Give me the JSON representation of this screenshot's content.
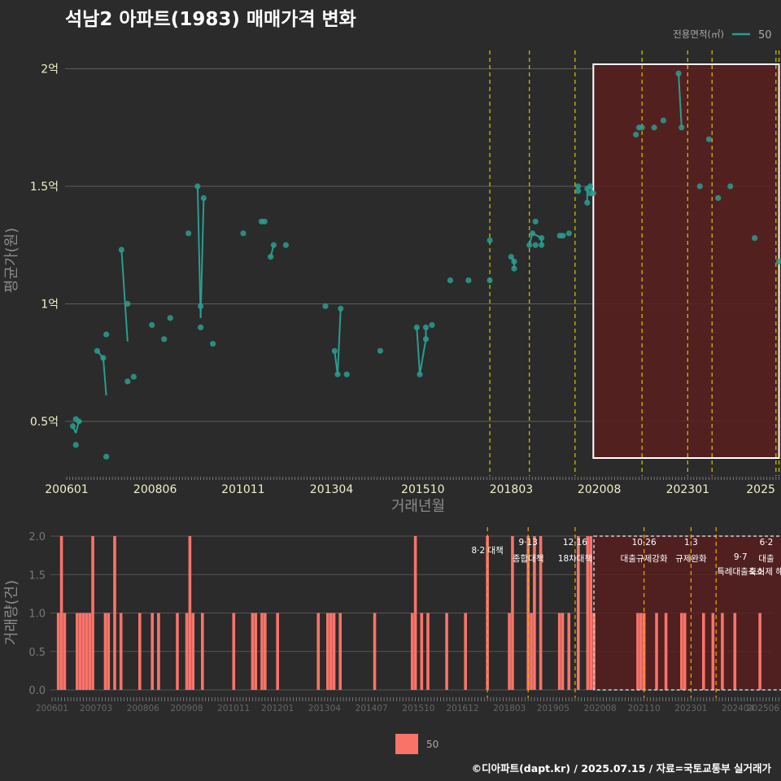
{
  "title": "석남2 아파트(1983) 매매가격 변화",
  "footer": "©디아파트(dapt.kr) / 2025.07.15 / 자료=국토교통부 실거래가",
  "colors": {
    "background": "#2b2b2b",
    "series": "#2a9d8f",
    "volume_bar": "#fa7369",
    "highlight_fill": "#5a1e1e",
    "policy_line": "#d4c700",
    "policy_line_lower": "#f2a900"
  },
  "chart_data": [
    {
      "type": "scatter",
      "title": "석남2 아파트(1983) 매매가격 변화",
      "xlabel": "거래년월",
      "ylabel": "평균가(원)",
      "x_ticks": [
        "200601",
        "200806",
        "201011",
        "201304",
        "201510",
        "201803",
        "202008",
        "202301",
        "2025"
      ],
      "y_ticks": [
        "0.5억",
        "1억",
        "1.5억",
        "2억"
      ],
      "y_tick_values": [
        0.5,
        1.0,
        1.5,
        2.0
      ],
      "ylim": [
        0.25,
        2.1
      ],
      "grid": true,
      "legend": {
        "title": "전용면적(㎡)",
        "placement": "top-right"
      },
      "highlight_range": [
        "2020-06",
        "2025-07"
      ],
      "policy_dates": [
        "2017-08",
        "2018-09",
        "2019-12",
        "2021-10",
        "2023-01",
        "2023-09",
        "2025-06",
        "2025-07"
      ],
      "series": [
        {
          "name": "50",
          "points": [
            [
              "2006-03",
              0.48
            ],
            [
              "2006-04",
              0.51
            ],
            [
              "2006-05",
              0.5
            ],
            [
              "2006-04",
              0.4
            ],
            [
              "2006-11",
              0.8
            ],
            [
              "2007-01",
              0.77
            ],
            [
              "2007-02",
              0.87
            ],
            [
              "2007-02",
              0.35
            ],
            [
              "2007-07",
              1.23
            ],
            [
              "2007-09",
              1.0
            ],
            [
              "2007-09",
              0.67
            ],
            [
              "2007-11",
              0.69
            ],
            [
              "2008-05",
              0.91
            ],
            [
              "2008-09",
              0.85
            ],
            [
              "2008-11",
              0.94
            ],
            [
              "2009-05",
              1.3
            ],
            [
              "2009-08",
              1.5
            ],
            [
              "2009-09",
              0.99
            ],
            [
              "2009-09",
              0.9
            ],
            [
              "2009-10",
              1.45
            ],
            [
              "2010-01",
              0.83
            ],
            [
              "2010-11",
              1.3
            ],
            [
              "2011-05",
              1.35
            ],
            [
              "2011-06",
              1.35
            ],
            [
              "2011-08",
              1.2
            ],
            [
              "2011-09",
              1.25
            ],
            [
              "2012-01",
              1.25
            ],
            [
              "2013-02",
              0.99
            ],
            [
              "2013-05",
              0.8
            ],
            [
              "2013-06",
              0.7
            ],
            [
              "2013-07",
              0.98
            ],
            [
              "2013-09",
              0.7
            ],
            [
              "2014-08",
              0.8
            ],
            [
              "2015-08",
              0.9
            ],
            [
              "2015-09",
              0.7
            ],
            [
              "2015-11",
              0.85
            ],
            [
              "2015-11",
              0.9
            ],
            [
              "2016-01",
              0.91
            ],
            [
              "2016-07",
              1.1
            ],
            [
              "2017-01",
              1.1
            ],
            [
              "2017-08",
              1.27
            ],
            [
              "2017-08",
              1.1
            ],
            [
              "2018-03",
              1.2
            ],
            [
              "2018-04",
              1.18
            ],
            [
              "2018-04",
              1.15
            ],
            [
              "2018-09",
              1.25
            ],
            [
              "2018-10",
              1.3
            ],
            [
              "2018-11",
              1.35
            ],
            [
              "2018-11",
              1.25
            ],
            [
              "2019-01",
              1.28
            ],
            [
              "2019-01",
              1.25
            ],
            [
              "2019-07",
              1.29
            ],
            [
              "2019-08",
              1.29
            ],
            [
              "2019-10",
              1.3
            ],
            [
              "2020-01",
              1.5
            ],
            [
              "2020-01",
              1.48
            ],
            [
              "2020-04",
              1.43
            ],
            [
              "2020-04",
              1.49
            ],
            [
              "2020-05",
              1.5
            ],
            [
              "2020-05",
              1.47
            ],
            [
              "2020-06",
              1.47
            ],
            [
              "2021-08",
              1.72
            ],
            [
              "2021-09",
              1.75
            ],
            [
              "2021-10",
              1.75
            ],
            [
              "2022-02",
              1.75
            ],
            [
              "2022-05",
              1.78
            ],
            [
              "2022-10",
              1.98
            ],
            [
              "2022-11",
              1.75
            ],
            [
              "2023-05",
              1.5
            ],
            [
              "2023-08",
              1.7
            ],
            [
              "2023-11",
              1.45
            ],
            [
              "2024-03",
              1.5
            ],
            [
              "2024-11",
              1.28
            ],
            [
              "2025-07",
              1.18
            ]
          ],
          "line": [
            [
              "2006-03",
              0.48
            ],
            [
              "2006-04",
              0.45
            ],
            [
              "2006-05",
              0.5
            ],
            [
              "2006-06",
              0.5
            ],
            [
              "2006-11",
              0.8
            ],
            [
              "2007-01",
              0.77
            ],
            [
              "2007-02",
              0.61
            ],
            [
              "2007-07",
              1.23
            ],
            [
              "2007-09",
              0.84
            ],
            [
              "2009-08",
              1.5
            ],
            [
              "2009-09",
              0.94
            ],
            [
              "2009-10",
              1.45
            ],
            [
              "2011-08",
              1.2
            ],
            [
              "2011-09",
              1.25
            ],
            [
              "2013-05",
              0.8
            ],
            [
              "2013-06",
              0.7
            ],
            [
              "2013-07",
              0.98
            ],
            [
              "2015-08",
              0.9
            ],
            [
              "2015-09",
              0.7
            ],
            [
              "2015-11",
              0.85
            ],
            [
              "2015-11",
              0.9
            ],
            [
              "2018-03",
              1.2
            ],
            [
              "2018-04",
              1.18
            ],
            [
              "2018-04",
              1.15
            ],
            [
              "2018-09",
              1.25
            ],
            [
              "2018-10",
              1.3
            ],
            [
              "2019-01",
              1.28
            ],
            [
              "2019-01",
              1.25
            ],
            [
              "2020-04",
              1.43
            ],
            [
              "2020-04",
              1.49
            ],
            [
              "2020-05",
              1.5
            ],
            [
              "2020-06",
              1.47
            ],
            [
              "2021-09",
              1.75
            ],
            [
              "2021-10",
              1.75
            ],
            [
              "2022-10",
              1.98
            ],
            [
              "2022-11",
              1.75
            ]
          ]
        }
      ]
    },
    {
      "type": "bar",
      "ylabel": "거래량(건)",
      "x_ticks": [
        "200601",
        "200703",
        "200806",
        "200908",
        "201011",
        "201201",
        "201304",
        "201407",
        "201510",
        "201612",
        "201803",
        "201905",
        "202008",
        "202110",
        "202301",
        "202404",
        "202506"
      ],
      "y_ticks": [
        "0.0",
        "0.5",
        "1.0",
        "1.5",
        "2.0"
      ],
      "y_tick_values": [
        0.0,
        0.5,
        1.0,
        1.5,
        2.0
      ],
      "ylim": [
        0,
        2.1
      ],
      "grid": true,
      "legend": {
        "entries": [
          "50"
        ],
        "placement": "bottom"
      },
      "highlight_range": [
        "2020-06",
        "2025-07"
      ],
      "policy_dates": [
        "2017-08",
        "2018-09",
        "2019-12",
        "2021-10",
        "2023-01",
        "2023-09",
        "2025-06",
        "2025-07"
      ],
      "annotations": [
        {
          "date": "2017-08",
          "lines": [
            "8·2 대책"
          ]
        },
        {
          "date": "2018-09",
          "lines": [
            "9·13",
            "종합대책"
          ]
        },
        {
          "date": "2019-12",
          "lines": [
            "12·16",
            "18차대책"
          ]
        },
        {
          "date": "2021-10",
          "lines": [
            "10·26",
            "대출규제강화"
          ]
        },
        {
          "date": "2023-01",
          "lines": [
            "1·3",
            "규제완화"
          ]
        },
        {
          "date": "2023-09",
          "lines": [
            "9·7",
            "특례대출축소"
          ]
        },
        {
          "date": "2025-06",
          "lines": [
            "6·2",
            "대출"
          ]
        },
        {
          "date": "2025-06",
          "lines": [
            "토허제 해"
          ]
        }
      ],
      "bars": [
        [
          "2006-03",
          1
        ],
        [
          "2006-04",
          2
        ],
        [
          "2006-05",
          1
        ],
        [
          "2006-09",
          1
        ],
        [
          "2006-10",
          1
        ],
        [
          "2006-11",
          1
        ],
        [
          "2006-12",
          1
        ],
        [
          "2007-01",
          1
        ],
        [
          "2007-02",
          2
        ],
        [
          "2007-06",
          1
        ],
        [
          "2007-07",
          1
        ],
        [
          "2007-09",
          2
        ],
        [
          "2007-11",
          1
        ],
        [
          "2008-05",
          1
        ],
        [
          "2008-09",
          1
        ],
        [
          "2008-11",
          1
        ],
        [
          "2009-05",
          1
        ],
        [
          "2009-08",
          1
        ],
        [
          "2009-09",
          2
        ],
        [
          "2009-10",
          1
        ],
        [
          "2010-01",
          1
        ],
        [
          "2010-11",
          1
        ],
        [
          "2011-05",
          1
        ],
        [
          "2011-06",
          1
        ],
        [
          "2011-08",
          1
        ],
        [
          "2011-09",
          1
        ],
        [
          "2012-01",
          1
        ],
        [
          "2013-02",
          1
        ],
        [
          "2013-05",
          1
        ],
        [
          "2013-06",
          1
        ],
        [
          "2013-07",
          1
        ],
        [
          "2013-09",
          1
        ],
        [
          "2014-08",
          1
        ],
        [
          "2015-08",
          1
        ],
        [
          "2015-09",
          2
        ],
        [
          "2015-11",
          1
        ],
        [
          "2016-01",
          1
        ],
        [
          "2016-07",
          1
        ],
        [
          "2017-01",
          1
        ],
        [
          "2017-08",
          2
        ],
        [
          "2018-03",
          1
        ],
        [
          "2018-04",
          2
        ],
        [
          "2018-09",
          2
        ],
        [
          "2018-10",
          1
        ],
        [
          "2018-11",
          2
        ],
        [
          "2019-01",
          2
        ],
        [
          "2019-07",
          1
        ],
        [
          "2019-08",
          1
        ],
        [
          "2019-10",
          1
        ],
        [
          "2020-01",
          2
        ],
        [
          "2020-04",
          2
        ],
        [
          "2020-05",
          2
        ],
        [
          "2020-06",
          1
        ],
        [
          "2021-08",
          1
        ],
        [
          "2021-09",
          1
        ],
        [
          "2021-10",
          1
        ],
        [
          "2022-02",
          1
        ],
        [
          "2022-05",
          1
        ],
        [
          "2022-10",
          1
        ],
        [
          "2022-11",
          1
        ],
        [
          "2023-05",
          1
        ],
        [
          "2023-08",
          1
        ],
        [
          "2023-11",
          1
        ],
        [
          "2024-03",
          1
        ],
        [
          "2024-11",
          1
        ],
        [
          "2025-07",
          1
        ]
      ]
    }
  ]
}
